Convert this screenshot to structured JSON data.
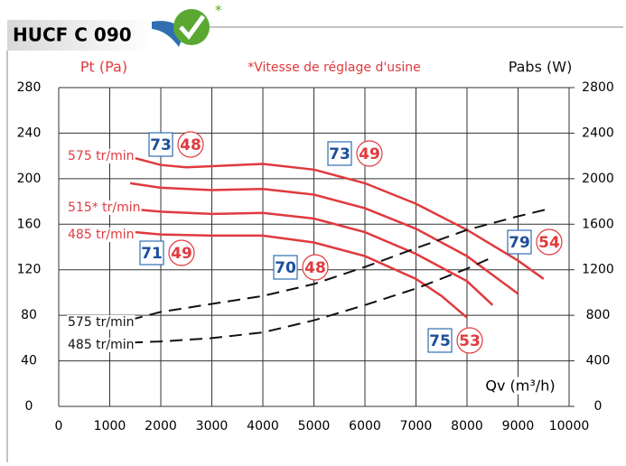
{
  "chart_data": {
    "type": "line",
    "title": "HUCF C 090",
    "logo_mark": "*",
    "y_label": "Pt (Pa)",
    "y2_label": "Pabs (W)",
    "x_label": "Qv (m³/h)",
    "note": "*Vitesse de réglage d'usine",
    "xlim": [
      0,
      10000
    ],
    "xticks": [
      0,
      1000,
      2000,
      3000,
      4000,
      5000,
      6000,
      7000,
      8000,
      9000,
      10000
    ],
    "ylim": [
      0,
      280
    ],
    "yticks": [
      0,
      40,
      80,
      120,
      160,
      200,
      240,
      280
    ],
    "y2lim": [
      0,
      2800
    ],
    "y2ticks": [
      0,
      400,
      800,
      1200,
      1600,
      2000,
      2400,
      2800
    ],
    "grid": true,
    "series": [
      {
        "name": "575 tr/min",
        "color": "#e03a3e",
        "x": [
          1500,
          2000,
          2500,
          3000,
          4000,
          5000,
          6000,
          7000,
          8000,
          9000,
          9500
        ],
        "values": [
          218,
          212,
          210,
          211,
          213,
          208,
          196,
          178,
          155,
          128,
          112
        ]
      },
      {
        "color": "#e03a3e",
        "x": [
          1400,
          2000,
          3000,
          4000,
          5000,
          6000,
          7000,
          8000,
          9000
        ],
        "values": [
          196,
          192,
          190,
          191,
          186,
          174,
          156,
          132,
          99
        ]
      },
      {
        "name": "515* tr/min",
        "color": "#e03a3e",
        "x": [
          1500,
          2000,
          3000,
          4000,
          5000,
          6000,
          7000,
          8000,
          8500
        ],
        "values": [
          173,
          171,
          169,
          170,
          165,
          153,
          134,
          110,
          89
        ]
      },
      {
        "name": "485 tr/min",
        "color": "#e03a3e",
        "x": [
          1500,
          2000,
          3000,
          4000,
          5000,
          6000,
          7000,
          7500,
          8000
        ],
        "values": [
          153,
          151,
          150,
          150,
          144,
          132,
          112,
          97,
          78
        ]
      },
      {
        "name": "575 tr/min",
        "color": "#111111",
        "axis": "y2",
        "dashed": true,
        "x": [
          1400,
          2000,
          3000,
          4000,
          5000,
          6000,
          7000,
          8000,
          9000,
          9600
        ],
        "values": [
          760,
          830,
          900,
          970,
          1075,
          1225,
          1390,
          1550,
          1670,
          1735
        ]
      },
      {
        "name": "485 tr/min",
        "color": "#111111",
        "axis": "y2",
        "dashed": true,
        "x": [
          1400,
          2000,
          3000,
          4000,
          5000,
          6000,
          7000,
          8000,
          8500
        ],
        "values": [
          560,
          570,
          600,
          650,
          756,
          890,
          1035,
          1210,
          1310
        ]
      }
    ],
    "annotations": [
      {
        "box": "73",
        "circle": "48"
      },
      {
        "box": "73",
        "circle": "49"
      },
      {
        "box": "71",
        "circle": "49"
      },
      {
        "box": "70",
        "circle": "48"
      },
      {
        "box": "79",
        "circle": "54"
      },
      {
        "box": "75",
        "circle": "53"
      }
    ]
  }
}
